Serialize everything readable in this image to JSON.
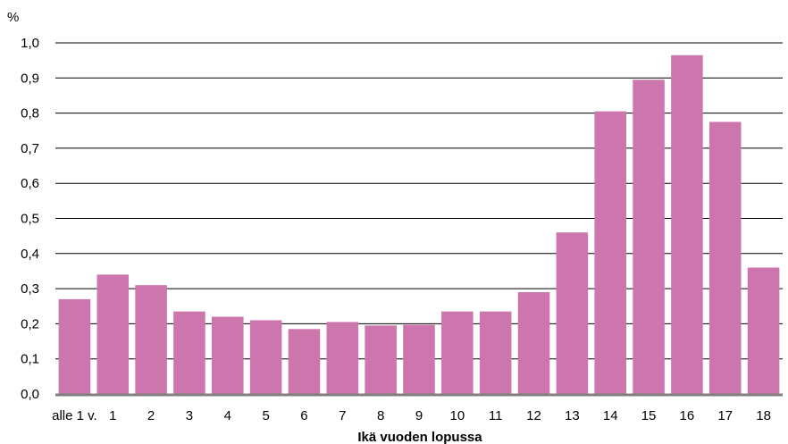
{
  "chart_data": {
    "type": "bar",
    "title": "",
    "ylabel": "%",
    "xlabel": "Ikä vuoden lopussa",
    "categories": [
      "alle 1 v.",
      "1",
      "2",
      "3",
      "4",
      "5",
      "6",
      "7",
      "8",
      "9",
      "10",
      "11",
      "12",
      "13",
      "14",
      "15",
      "16",
      "17",
      "18"
    ],
    "values": [
      0.27,
      0.34,
      0.31,
      0.235,
      0.22,
      0.21,
      0.185,
      0.205,
      0.195,
      0.197,
      0.235,
      0.235,
      0.29,
      0.46,
      0.805,
      0.895,
      0.965,
      0.775,
      0.36
    ],
    "ylim": [
      0,
      1.0
    ],
    "yticks": [
      "0,0",
      "0,1",
      "0,2",
      "0,3",
      "0,4",
      "0,5",
      "0,6",
      "0,7",
      "0,8",
      "0,9",
      "1,0"
    ],
    "grid": true,
    "bar_color": "#cc76ad",
    "grid_color": "#000000",
    "axis_color": "#7f7f7f"
  }
}
